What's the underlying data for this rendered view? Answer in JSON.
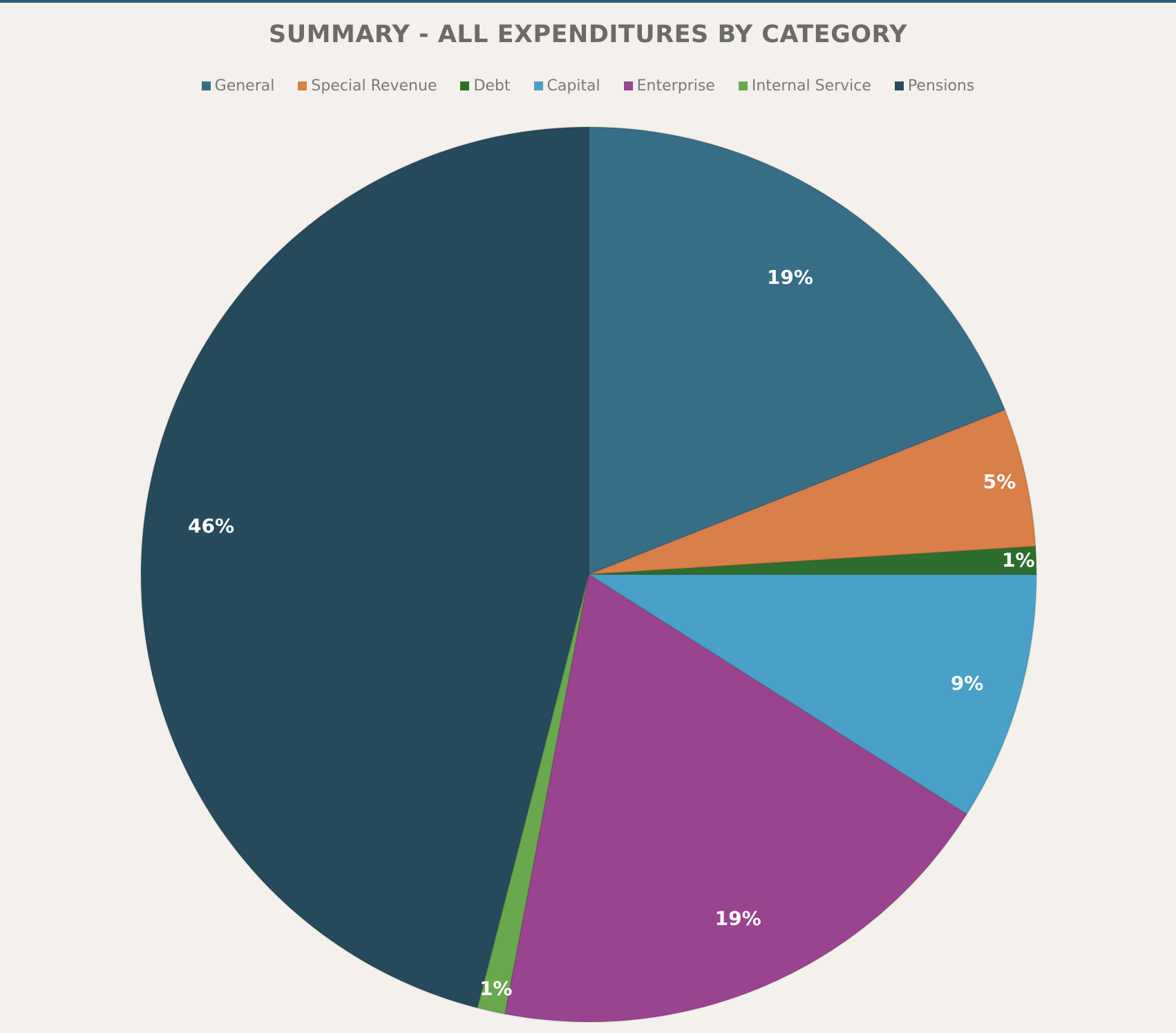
{
  "chart_data": {
    "type": "pie",
    "title": "SUMMARY - ALL EXPENDITURES BY CATEGORY",
    "legend_position": "top",
    "categories": [
      "General",
      "Special Revenue",
      "Debt",
      "Capital",
      "Enterprise",
      "Internal Service",
      "Pensions"
    ],
    "values": [
      19,
      5,
      1,
      9,
      19,
      1,
      46
    ],
    "labels": [
      "19%",
      "5%",
      "1%",
      "9%",
      "19%",
      "1%",
      "46%"
    ],
    "colors": [
      "#386d86",
      "#d87f4a",
      "#2e6e2c",
      "#4aa0c7",
      "#9a4490",
      "#6aa84f",
      "#264a5b"
    ]
  }
}
